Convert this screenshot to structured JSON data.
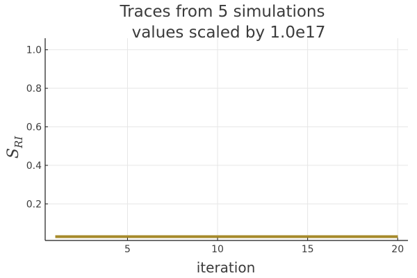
{
  "chart_data": {
    "type": "line",
    "title": "Traces from 5 simulations",
    "subtitle": "values scaled by 1.0e17",
    "xlabel": "iteration",
    "ylabel": "S",
    "ylabel_subscript": "RI",
    "xlim": [
      0.43,
      20.57
    ],
    "ylim": [
      0.01,
      1.06
    ],
    "xticks": [
      5,
      10,
      15,
      20
    ],
    "yticks": [
      0.2,
      0.4,
      0.6,
      0.8,
      1.0
    ],
    "xtick_labels": [
      "5",
      "10",
      "15",
      "20"
    ],
    "ytick_labels": [
      "0.2",
      "0.4",
      "0.6",
      "0.8",
      "1.0"
    ],
    "grid": true,
    "legend": "none",
    "line_color": "#a68a2b",
    "x": [
      1,
      2,
      3,
      4,
      5,
      6,
      7,
      8,
      9,
      10,
      11,
      12,
      13,
      14,
      15,
      16,
      17,
      18,
      19,
      20
    ],
    "series": [
      {
        "values": [
          0.03,
          0.03,
          0.03,
          0.03,
          0.03,
          0.03,
          0.03,
          0.03,
          0.03,
          0.03,
          0.03,
          0.03,
          0.03,
          0.03,
          0.03,
          0.03,
          0.03,
          0.03,
          0.03,
          0.03
        ]
      },
      {
        "values": [
          0.03,
          0.03,
          0.03,
          0.03,
          0.03,
          0.03,
          0.03,
          0.03,
          0.03,
          0.03,
          0.03,
          0.03,
          0.03,
          0.03,
          0.03,
          0.03,
          0.03,
          0.03,
          0.03,
          0.03
        ]
      },
      {
        "values": [
          0.03,
          0.03,
          0.03,
          0.03,
          0.03,
          0.03,
          0.03,
          0.03,
          0.03,
          0.03,
          0.03,
          0.03,
          0.03,
          0.03,
          0.03,
          0.03,
          0.03,
          0.03,
          0.03,
          0.03
        ]
      },
      {
        "values": [
          0.03,
          0.03,
          0.03,
          0.03,
          0.03,
          0.03,
          0.03,
          0.03,
          0.03,
          0.03,
          0.03,
          0.03,
          0.03,
          0.03,
          0.03,
          0.03,
          0.03,
          0.03,
          0.03,
          0.03
        ]
      },
      {
        "values": [
          0.03,
          0.03,
          0.03,
          0.03,
          0.03,
          0.03,
          0.03,
          0.03,
          0.03,
          0.03,
          0.03,
          0.03,
          0.03,
          0.03,
          0.03,
          0.03,
          0.03,
          0.03,
          0.03,
          0.03
        ]
      }
    ]
  }
}
